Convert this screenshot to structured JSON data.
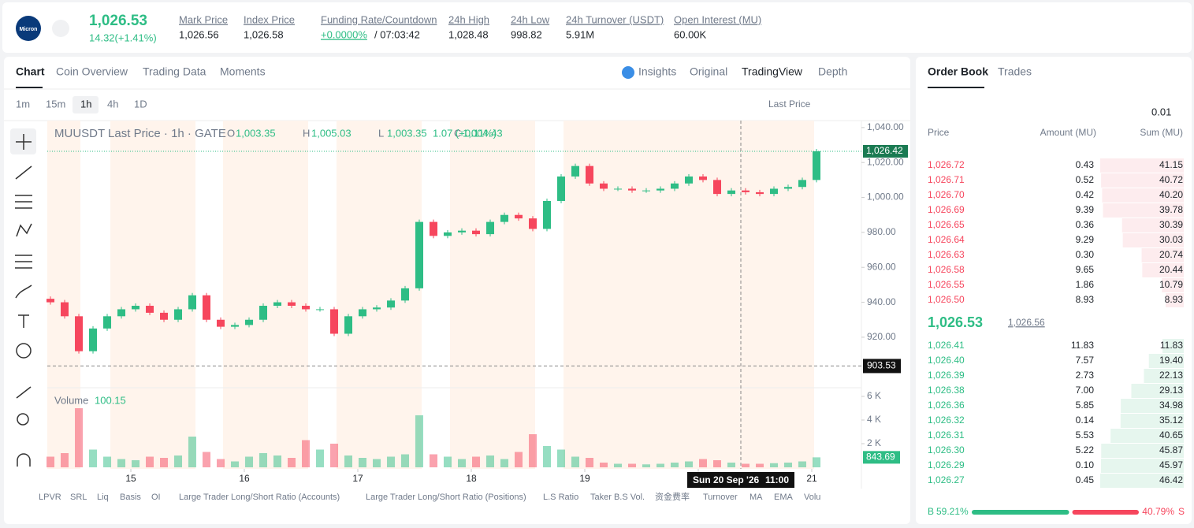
{
  "header": {
    "logo": "Micron",
    "price": "1,026.53",
    "change": "14.32(+1.41%)",
    "fields": [
      {
        "label": "Mark Price",
        "value": "1,026.56"
      },
      {
        "label": "Index Price",
        "value": "1,026.58"
      },
      {
        "label": "Funding Rate/Countdown",
        "value": "+0.0000%",
        "value2": "/ 07:03:42"
      },
      {
        "label": "24h High",
        "value": "1,028.48"
      },
      {
        "label": "24h Low",
        "value": "998.82"
      },
      {
        "label": "24h Turnover (USDT)",
        "value": "5.91M"
      },
      {
        "label": "Open Interest (MU)",
        "value": "60.00K"
      }
    ]
  },
  "tabs": [
    "Chart",
    "Coin Overview",
    "Trading Data",
    "Moments"
  ],
  "views": [
    "Insights",
    "Original",
    "TradingView",
    "Depth"
  ],
  "intervals": [
    "1m",
    "15m",
    "1h",
    "4h",
    "1D"
  ],
  "price_source": "Last Price",
  "indicators": [
    "LPVR",
    "SRL",
    "Liq",
    "Basis",
    "OI",
    "Large Trader Long/Short Ratio (Accounts)",
    "Large Trader Long/Short Ratio (Positions)",
    "L.S Ratio",
    "Taker B.S Vol.",
    "资金费率",
    "Turnover",
    "MA",
    "EMA",
    "Volu"
  ],
  "chart_data": {
    "type": "candlestick",
    "title": "MUUSDT Last Price · 1h · GATE",
    "ohlc": [
      {
        "k": "O",
        "v": "1,003.35"
      },
      {
        "k": "H",
        "v": "1,005.03"
      },
      {
        "k": "L",
        "v": "1,003.35"
      },
      {
        "k": "C",
        "v": "1,004.43"
      }
    ],
    "ohlc_change": "1.07 (+0.11%)",
    "x": [
      7,
      10,
      13,
      16,
      19,
      22,
      25,
      28,
      31,
      34,
      37,
      40,
      43,
      46,
      49,
      52,
      55,
      58,
      61,
      64,
      67,
      70,
      73,
      76,
      79,
      82,
      85,
      88,
      91,
      94,
      97,
      100,
      103,
      106,
      109,
      112,
      115,
      118,
      121,
      124,
      127,
      130,
      133,
      136,
      139,
      142,
      145,
      148,
      151,
      154,
      157,
      160,
      163,
      166,
      169
    ],
    "open": [
      942,
      940,
      932,
      912,
      925,
      932,
      936,
      938,
      934,
      930,
      936,
      944,
      930,
      926,
      927,
      930,
      938,
      940,
      938,
      936,
      936,
      922,
      932,
      936,
      937,
      941,
      948,
      986,
      978,
      980,
      981,
      979,
      986,
      990,
      988,
      982,
      998,
      1012,
      1018,
      1008,
      1005,
      1005,
      1004,
      1004,
      1005,
      1008,
      1012,
      1010,
      1002,
      1004,
      1003,
      1002,
      1005,
      1006,
      1010
    ],
    "close": [
      940,
      932,
      912,
      925,
      932,
      936,
      938,
      934,
      930,
      936,
      944,
      930,
      926,
      927,
      930,
      938,
      940,
      938,
      936,
      936,
      922,
      932,
      936,
      937,
      941,
      948,
      986,
      978,
      980,
      981,
      979,
      986,
      990,
      988,
      982,
      998,
      1012,
      1018,
      1008,
      1005,
      1005,
      1004,
      1004,
      1005,
      1008,
      1012,
      1010,
      1002,
      1004,
      1003,
      1002,
      1005,
      1006,
      1010,
      1026.42
    ],
    "xlim": [
      6.33,
      178.5
    ],
    "xticks": [
      {
        "value": 24,
        "label": "15"
      },
      {
        "value": 48,
        "label": "16"
      },
      {
        "value": 72,
        "label": "17"
      },
      {
        "value": 96,
        "label": "18"
      },
      {
        "value": 120,
        "label": "19"
      },
      {
        "value": 144,
        "label": "20"
      },
      {
        "value": 168,
        "label": "21"
      }
    ],
    "ylim": [
      892,
      1044
    ],
    "yticks": [
      {
        "value": 920,
        "label": "920.00"
      },
      {
        "value": 940,
        "label": "940.00"
      },
      {
        "value": 960,
        "label": "960.00"
      },
      {
        "value": 980,
        "label": "980.00"
      },
      {
        "value": 1000,
        "label": "1,000.00"
      },
      {
        "value": 1020,
        "label": "1,020.00"
      },
      {
        "value": 1040,
        "label": "1,040.00"
      }
    ],
    "price_tag": {
      "value": 1026.42,
      "label": "1,026.42"
    },
    "crosshair": {
      "x": 153,
      "y": 903.53,
      "date": "Sun 20 Sep '26",
      "time": "11:00"
    },
    "colors": {
      "up": "#2ebd85",
      "down": "#f6465d"
    },
    "volume": {
      "label": "Volume",
      "crosshair_value": "100.15",
      "ylim": [
        0,
        6400
      ],
      "yticks": [
        {
          "value": 2000,
          "label": "2 K"
        },
        {
          "value": 4000,
          "label": "4 K"
        },
        {
          "value": 6000,
          "label": "6 K"
        }
      ],
      "values": [
        900,
        1200,
        5000,
        1500,
        900,
        700,
        600,
        900,
        800,
        1000,
        2600,
        1300,
        700,
        500,
        900,
        1200,
        1000,
        800,
        2300,
        1500,
        2000,
        1000,
        800,
        700,
        900,
        1100,
        4400,
        1100,
        900,
        700,
        900,
        1000,
        700,
        1300,
        2800,
        1800,
        1500,
        900,
        800,
        400,
        300,
        300,
        250,
        300,
        400,
        500,
        700,
        600,
        400,
        300,
        300,
        350,
        400,
        500,
        843.69
      ]
    }
  },
  "order_book": {
    "tabs": [
      "Order Book",
      "Trades"
    ],
    "precision": "0.01",
    "headers": [
      "Price",
      "Amount (MU)",
      "Sum (MU)"
    ],
    "asks": [
      [
        "1,026.72",
        "0.43",
        "41.15"
      ],
      [
        "1,026.71",
        "0.52",
        "40.72"
      ],
      [
        "1,026.70",
        "0.42",
        "40.20"
      ],
      [
        "1,026.69",
        "9.39",
        "39.78"
      ],
      [
        "1,026.65",
        "0.36",
        "30.39"
      ],
      [
        "1,026.64",
        "9.29",
        "30.03"
      ],
      [
        "1,026.63",
        "0.30",
        "20.74"
      ],
      [
        "1,026.58",
        "9.65",
        "20.44"
      ],
      [
        "1,026.55",
        "1.86",
        "10.79"
      ],
      [
        "1,026.50",
        "8.93",
        "8.93"
      ]
    ],
    "mid_price": "1,026.53",
    "mark_price": "1,026.56",
    "bids": [
      [
        "1,026.41",
        "11.83",
        "11.83"
      ],
      [
        "1,026.40",
        "7.57",
        "19.40"
      ],
      [
        "1,026.39",
        "2.73",
        "22.13"
      ],
      [
        "1,026.38",
        "7.00",
        "29.13"
      ],
      [
        "1,026.36",
        "5.85",
        "34.98"
      ],
      [
        "1,026.32",
        "0.14",
        "35.12"
      ],
      [
        "1,026.31",
        "5.53",
        "40.65"
      ],
      [
        "1,026.30",
        "5.22",
        "45.87"
      ],
      [
        "1,026.29",
        "0.10",
        "45.97"
      ],
      [
        "1,026.27",
        "0.45",
        "46.42"
      ]
    ],
    "buy": {
      "letter": "B",
      "value": 59.21,
      "label": "59.21%"
    },
    "sell": {
      "letter": "S",
      "value": 40.79,
      "label": "40.79%"
    }
  }
}
